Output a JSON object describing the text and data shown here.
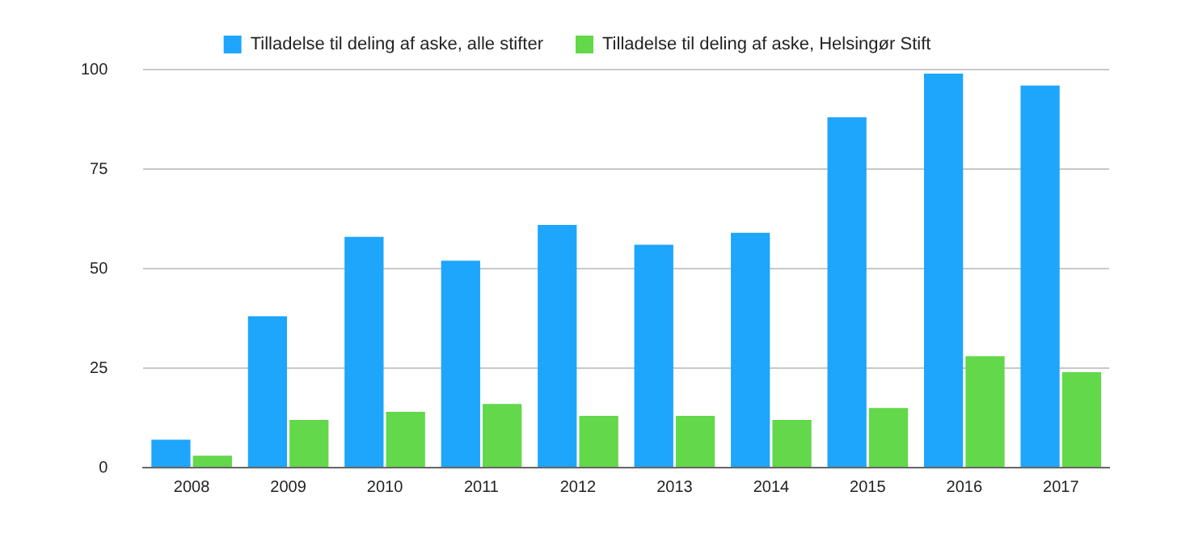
{
  "chart_data": {
    "type": "bar",
    "categories": [
      "2008",
      "2009",
      "2010",
      "2011",
      "2012",
      "2013",
      "2014",
      "2015",
      "2016",
      "2017"
    ],
    "series": [
      {
        "name": "Tilladelse til deling af aske, alle stifter",
        "color": "#1ea5fc",
        "values": [
          7,
          38,
          58,
          52,
          61,
          56,
          59,
          88,
          99,
          96
        ]
      },
      {
        "name": "Tilladelse til deling af aske, Helsingør Stift",
        "color": "#62d84a",
        "values": [
          3,
          12,
          14,
          16,
          13,
          13,
          12,
          15,
          28,
          24
        ]
      }
    ],
    "ylim": [
      0,
      100
    ],
    "yticks": [
      0,
      25,
      50,
      75,
      100
    ],
    "grid": "y",
    "legend": "top"
  }
}
